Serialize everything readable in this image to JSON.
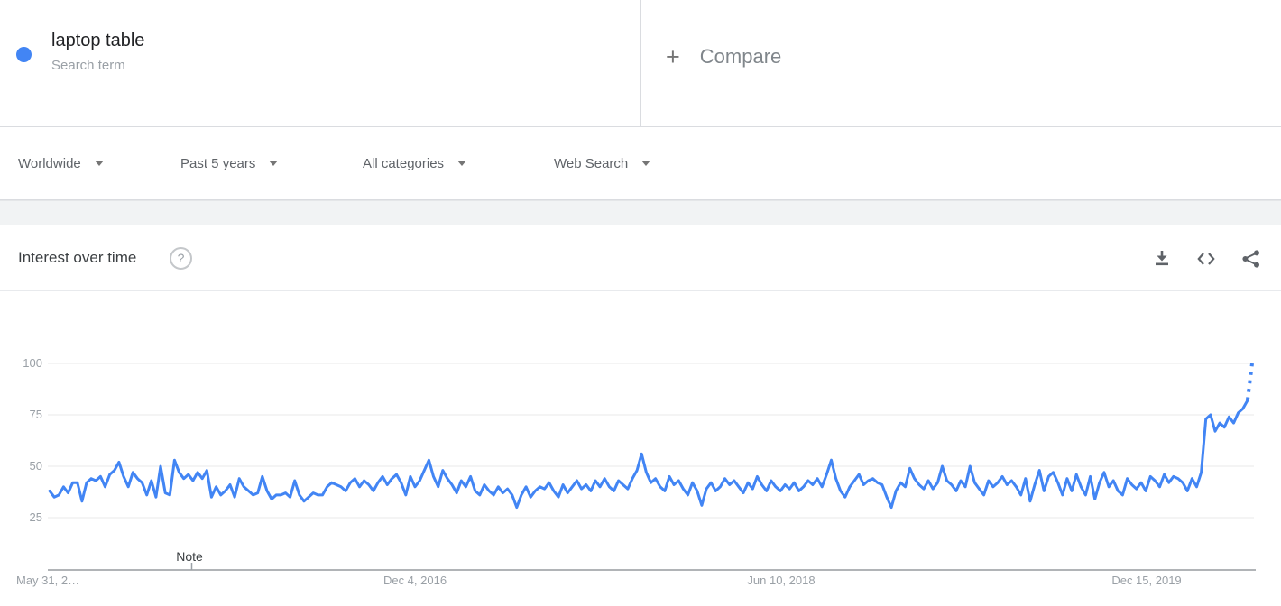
{
  "header": {
    "term": {
      "label": "laptop table",
      "sublabel": "Search term",
      "dot_color": "#4285f4"
    },
    "compare": {
      "plus": "+",
      "label": "Compare"
    }
  },
  "filters": [
    {
      "label": "Worldwide"
    },
    {
      "label": "Past 5 years"
    },
    {
      "label": "All categories"
    },
    {
      "label": "Web Search"
    }
  ],
  "card": {
    "title": "Interest over time",
    "help_glyph": "?",
    "actions": [
      "download-icon",
      "embed-icon",
      "share-icon"
    ]
  },
  "chart_data": {
    "type": "line",
    "title": "Interest over time",
    "series_name": "laptop table",
    "line_color": "#4285f4",
    "x_start": "2015-05-31",
    "x_interval": "weekly",
    "x_tick_labels": [
      "May 31, 2…",
      "Dec 4, 2016",
      "Jun 10, 2018",
      "Dec 15, 2019"
    ],
    "y_tick_labels": [
      "100",
      "75",
      "50",
      "25"
    ],
    "y_ticks": [
      25,
      50,
      75,
      100
    ],
    "ylim": [
      0,
      100
    ],
    "grid": true,
    "legend": "none",
    "note_label": "Note",
    "dashed_from_index": 259,
    "values": [
      38,
      35,
      36,
      40,
      37,
      42,
      42,
      33,
      42,
      44,
      43,
      45,
      40,
      46,
      48,
      52,
      45,
      40,
      47,
      44,
      42,
      36,
      43,
      35,
      50,
      37,
      36,
      53,
      47,
      44,
      46,
      43,
      47,
      44,
      48,
      35,
      40,
      36,
      38,
      41,
      35,
      44,
      40,
      38,
      36,
      37,
      45,
      38,
      34,
      36,
      36,
      37,
      35,
      43,
      36,
      33,
      35,
      37,
      36,
      36,
      40,
      42,
      41,
      40,
      38,
      42,
      44,
      40,
      43,
      41,
      38,
      42,
      45,
      41,
      44,
      46,
      42,
      36,
      45,
      40,
      43,
      48,
      53,
      45,
      40,
      48,
      44,
      41,
      37,
      43,
      40,
      45,
      38,
      36,
      41,
      38,
      36,
      40,
      37,
      39,
      36,
      30,
      36,
      40,
      35,
      38,
      40,
      39,
      42,
      38,
      35,
      41,
      37,
      40,
      43,
      39,
      41,
      38,
      43,
      40,
      44,
      40,
      38,
      43,
      41,
      39,
      44,
      48,
      56,
      47,
      42,
      44,
      40,
      38,
      45,
      41,
      43,
      39,
      36,
      42,
      38,
      31,
      39,
      42,
      38,
      40,
      44,
      41,
      43,
      40,
      37,
      42,
      39,
      45,
      41,
      38,
      43,
      40,
      38,
      41,
      39,
      42,
      38,
      40,
      43,
      41,
      44,
      40,
      46,
      53,
      44,
      38,
      35,
      40,
      43,
      46,
      41,
      43,
      44,
      42,
      41,
      35,
      30,
      38,
      42,
      40,
      49,
      44,
      41,
      39,
      43,
      39,
      42,
      50,
      43,
      41,
      38,
      43,
      40,
      50,
      42,
      39,
      36,
      43,
      40,
      42,
      45,
      41,
      43,
      40,
      36,
      44,
      33,
      41,
      48,
      38,
      45,
      47,
      42,
      36,
      44,
      38,
      46,
      40,
      36,
      45,
      34,
      42,
      47,
      40,
      43,
      38,
      36,
      44,
      41,
      39,
      42,
      38,
      45,
      43,
      40,
      46,
      42,
      45,
      44,
      42,
      38,
      44,
      40,
      47,
      73,
      75,
      67,
      71,
      69,
      74,
      71,
      76,
      78,
      82,
      100
    ]
  }
}
